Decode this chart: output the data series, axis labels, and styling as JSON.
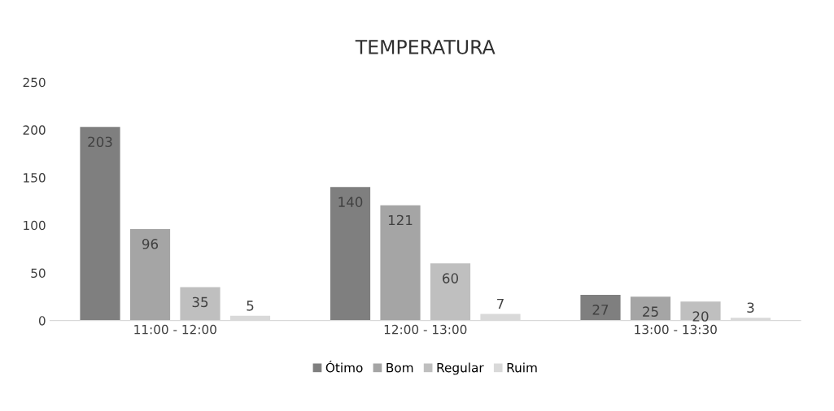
{
  "chart_data": {
    "type": "bar",
    "title": "TEMPERATURA",
    "categories": [
      "11:00 - 12:00",
      "12:00 - 13:00",
      "13:00 - 13:30"
    ],
    "series": [
      {
        "name": "Ótimo",
        "color": "#7f7f7f",
        "values": [
          203,
          140,
          27
        ]
      },
      {
        "name": "Bom",
        "color": "#a5a5a5",
        "values": [
          96,
          121,
          25
        ]
      },
      {
        "name": "Regular",
        "color": "#bfbfbf",
        "values": [
          35,
          60,
          20
        ]
      },
      {
        "name": "Ruim",
        "color": "#d9d9d9",
        "values": [
          5,
          7,
          3
        ]
      }
    ],
    "ylim": [
      0,
      250
    ],
    "yticks": [
      0,
      50,
      100,
      150,
      200,
      250
    ],
    "data_labels": true,
    "legend": "bottom",
    "grid": false
  }
}
